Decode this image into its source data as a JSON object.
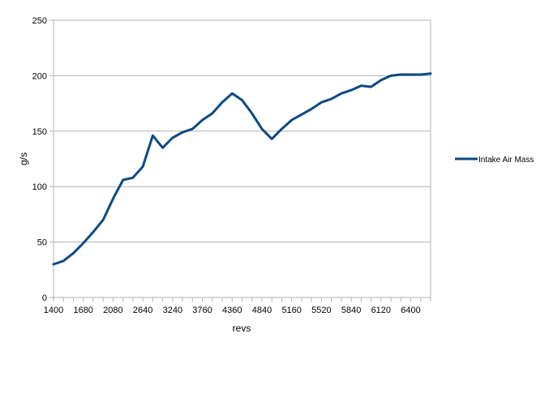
{
  "chart_data": {
    "type": "line",
    "xlabel": "revs",
    "ylabel": "g/s",
    "ylim": [
      0,
      250
    ],
    "y_ticks": [
      0,
      50,
      100,
      150,
      200,
      250
    ],
    "x_tick_labels": [
      "1400",
      "1680",
      "2080",
      "2640",
      "3240",
      "3760",
      "4360",
      "4840",
      "5160",
      "5520",
      "5840",
      "6120",
      "6400"
    ],
    "grid": "horizontal",
    "legend_position": "right",
    "series": [
      {
        "name": "Intake Air Mass",
        "color": "#0d4a82",
        "points": [
          [
            1400,
            30
          ],
          [
            1520,
            33
          ],
          [
            1640,
            40
          ],
          [
            1760,
            49
          ],
          [
            1880,
            59
          ],
          [
            2000,
            70
          ],
          [
            2120,
            89
          ],
          [
            2240,
            106
          ],
          [
            2360,
            108
          ],
          [
            2480,
            118
          ],
          [
            2600,
            146
          ],
          [
            2720,
            135
          ],
          [
            2840,
            144
          ],
          [
            2960,
            149
          ],
          [
            3080,
            152
          ],
          [
            3200,
            160
          ],
          [
            3320,
            166
          ],
          [
            3440,
            176
          ],
          [
            3560,
            184
          ],
          [
            3680,
            178
          ],
          [
            3800,
            166
          ],
          [
            3920,
            152
          ],
          [
            4040,
            143
          ],
          [
            4160,
            152
          ],
          [
            4280,
            160
          ],
          [
            4400,
            165
          ],
          [
            4520,
            170
          ],
          [
            4640,
            176
          ],
          [
            4760,
            179
          ],
          [
            4880,
            184
          ],
          [
            5000,
            187
          ],
          [
            5120,
            191
          ],
          [
            5240,
            190
          ],
          [
            5360,
            196
          ],
          [
            5480,
            200
          ],
          [
            5600,
            201
          ],
          [
            5720,
            201
          ],
          [
            5840,
            201
          ],
          [
            5960,
            202
          ]
        ]
      }
    ]
  }
}
